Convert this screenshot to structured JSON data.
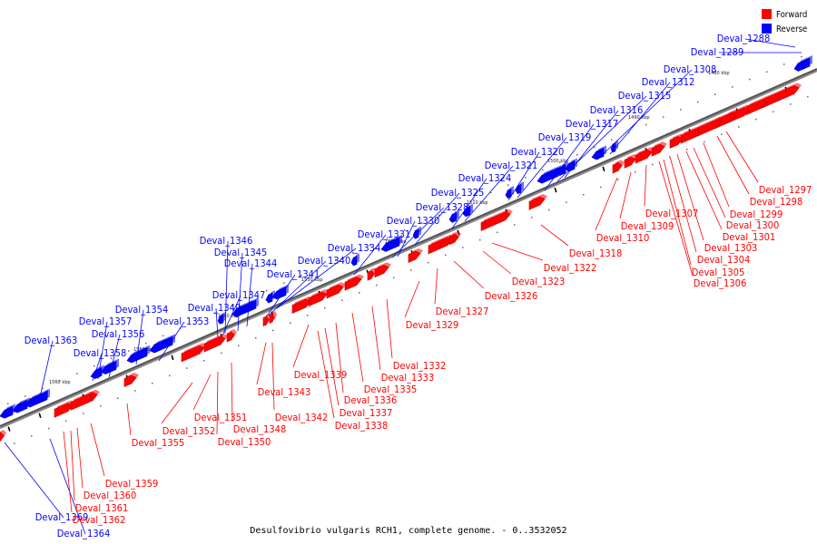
{
  "legend": {
    "forward": {
      "label": "Forward",
      "color": "#ff0000"
    },
    "reverse": {
      "label": "Reverse",
      "color": "#0000ff"
    }
  },
  "caption": "Desulfovibrio vulgaris RCH1, complete genome. - 0..3532052",
  "axis_ticks": [
    "1480 kbp",
    "1490 kbp",
    "1500 kbp",
    "1510 kbp",
    "1520 kbp",
    "1530 kbp",
    "1540 kbp",
    "1550 kbp",
    "1560 kbp"
  ],
  "reverse_genes": [
    "Deval_1288",
    "Deval_1289",
    "Deval_1308",
    "Deval_1312",
    "Deval_1315",
    "Deval_1316",
    "Deval_1317",
    "Deval_1319",
    "Deval_1320",
    "Deval_1321",
    "Deval_1324",
    "Deval_1325",
    "Deval_1328",
    "Deval_1330",
    "Deval_1331",
    "Deval_1334",
    "Deval_1340",
    "Deval_1341",
    "Deval_1346",
    "Deval_1345",
    "Deval_1344",
    "Deval_1347",
    "Deval_1349",
    "Deval_1354",
    "Deval_1353",
    "Deval_1357",
    "Deval_1356",
    "Deval_1358",
    "Deval_1363",
    "Deval_1369",
    "Deval_1364"
  ],
  "forward_genes": [
    "Deval_1297",
    "Deval_1298",
    "Deval_1299",
    "Deval_1300",
    "Deval_1301",
    "Deval_1307",
    "Deval_1303",
    "Deval_1309",
    "Deval_1304",
    "Deval_1310",
    "Deval_1305",
    "Deval_1306",
    "Deval_1318",
    "Deval_1322",
    "Deval_1323",
    "Deval_1326",
    "Deval_1327",
    "Deval_1329",
    "Deval_1332",
    "Deval_1333",
    "Deval_1339",
    "Deval_1335",
    "Deval_1336",
    "Deval_1343",
    "Deval_1337",
    "Deval_1338",
    "Deval_1342",
    "Deval_1351",
    "Deval_1348",
    "Deval_1352",
    "Deval_1350",
    "Deval_1355",
    "Deval_1359",
    "Deval_1360",
    "Deval_1361",
    "Deval_1362"
  ]
}
